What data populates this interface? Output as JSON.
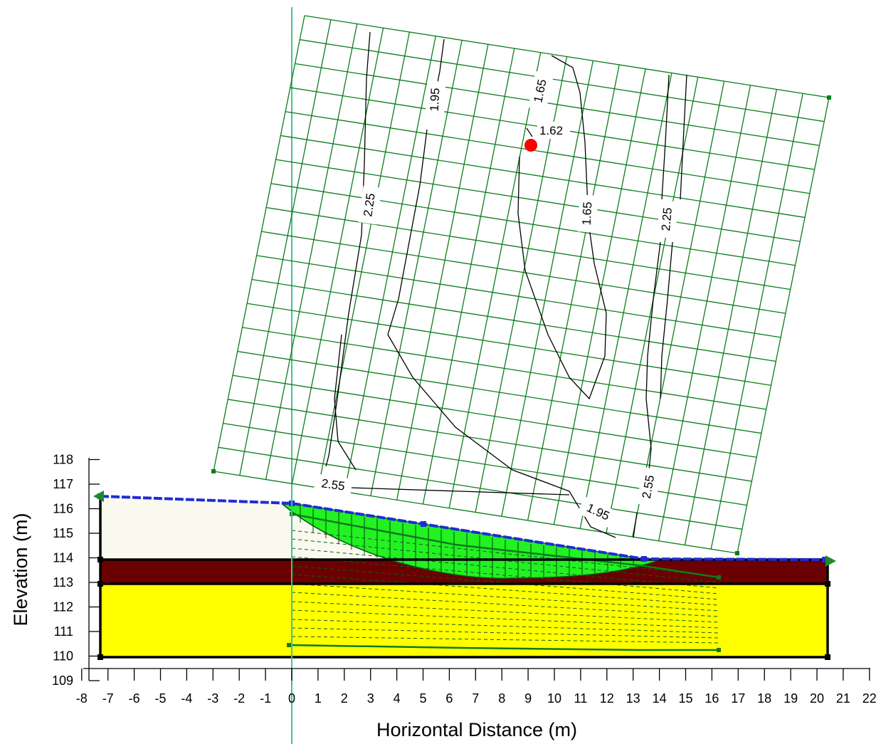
{
  "axes": {
    "x_title": "Horizontal Distance (m)",
    "y_title": "Elevation (m)",
    "x_ticks": [
      "-8",
      "-7",
      "-6",
      "-5",
      "-4",
      "-3",
      "-2",
      "-1",
      "0",
      "1",
      "2",
      "3",
      "4",
      "5",
      "6",
      "7",
      "8",
      "9",
      "10",
      "11",
      "12",
      "13",
      "14",
      "15",
      "16",
      "17",
      "18",
      "19",
      "20",
      "21",
      "22"
    ],
    "y_ticks": [
      "109",
      "110",
      "111",
      "112",
      "113",
      "114",
      "115",
      "116",
      "117",
      "118"
    ],
    "x_range": [
      -8,
      22
    ],
    "y_range": [
      109,
      118
    ]
  },
  "critical_point": {
    "label": "1.62",
    "color": "#ff0000"
  },
  "contour_labels": [
    {
      "id": "c-195-top",
      "text": "1.95"
    },
    {
      "id": "c-165-top",
      "text": "1.65"
    },
    {
      "id": "c-225-left",
      "text": "2.25"
    },
    {
      "id": "c-165-mid",
      "text": "1.65"
    },
    {
      "id": "c-225-right",
      "text": "2.25"
    },
    {
      "id": "c-255-left",
      "text": "2.55"
    },
    {
      "id": "c-195-bottom",
      "text": "1.95"
    },
    {
      "id": "c-255-right",
      "text": "2.55"
    }
  ],
  "colors": {
    "grid": "#0b7d1c",
    "vertical_line": "#41c48a",
    "surface_line": "#1f2bd9",
    "layer_top": "#f9f9ef",
    "layer_middle": "#6b0000",
    "layer_bottom": "#ffff00",
    "slip_mass": "#22f122",
    "critical_point": "#ff0000"
  }
}
